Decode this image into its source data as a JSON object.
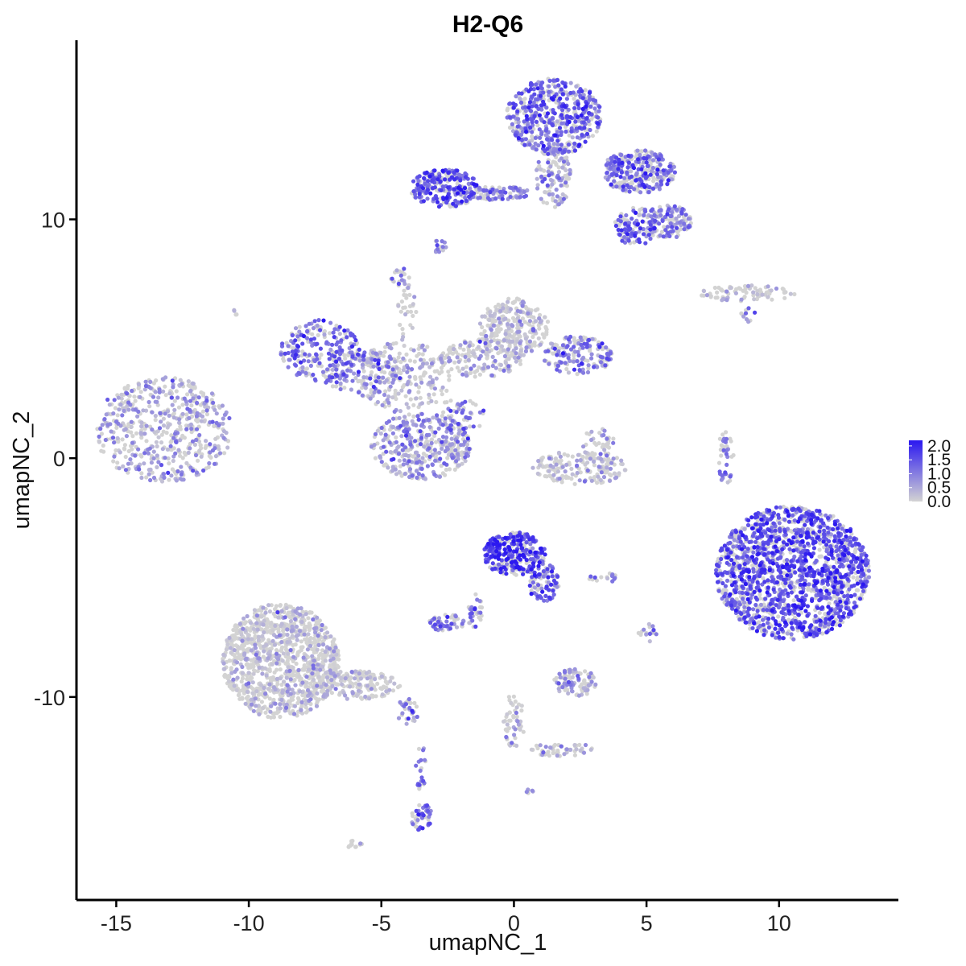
{
  "chart_data": {
    "type": "scatter",
    "title": "H2-Q6",
    "xlabel": "umapNC_1",
    "ylabel": "umapNC_2",
    "xlim": [
      -16.5,
      14.5
    ],
    "ylim": [
      -18.5,
      17.5
    ],
    "x_ticks": [
      -15,
      -10,
      -5,
      0,
      5,
      10
    ],
    "y_ticks": [
      -10,
      0,
      10
    ],
    "grid": false,
    "legend": {
      "placement": "right",
      "title": "",
      "ticks": [
        "0.0",
        "0.5",
        "1.0",
        "1.5",
        "2.0"
      ],
      "range": [
        0,
        2.2
      ]
    },
    "colors": {
      "low": "#d3d3d3",
      "high": "#2b18f0"
    },
    "clusters": [
      {
        "cx": -13.2,
        "cy": 1.2,
        "rx": 2.6,
        "ry": 2.2,
        "n": 520,
        "expr": 0.45
      },
      {
        "cx": -11.8,
        "cy": 2.2,
        "rx": 0.5,
        "ry": 0.5,
        "n": 25,
        "expr": 0.5
      },
      {
        "cx": -7.3,
        "cy": 4.5,
        "rx": 1.5,
        "ry": 1.3,
        "n": 220,
        "expr": 1.2
      },
      {
        "cx": -5.7,
        "cy": 3.6,
        "rx": 1.6,
        "ry": 0.9,
        "n": 140,
        "expr": 0.9
      },
      {
        "cx": -4.2,
        "cy": 3.4,
        "rx": 1.8,
        "ry": 1.5,
        "n": 200,
        "expr": 0.3
      },
      {
        "cx": -3.5,
        "cy": 0.5,
        "rx": 1.9,
        "ry": 1.4,
        "n": 380,
        "expr": 0.7
      },
      {
        "cx": -4.3,
        "cy": 7.6,
        "rx": 0.35,
        "ry": 0.4,
        "n": 20,
        "expr": 1.1
      },
      {
        "cx": -4.0,
        "cy": 6.0,
        "rx": 0.4,
        "ry": 1.3,
        "n": 30,
        "expr": 0.15
      },
      {
        "cx": -2.0,
        "cy": 1.8,
        "rx": 0.9,
        "ry": 0.8,
        "n": 50,
        "expr": 1.2
      },
      {
        "cx": 0.0,
        "cy": 5.5,
        "rx": 1.3,
        "ry": 1.2,
        "n": 260,
        "expr": 0.15
      },
      {
        "cx": -1.2,
        "cy": 4.2,
        "rx": 1.6,
        "ry": 0.8,
        "n": 160,
        "expr": 0.25
      },
      {
        "cx": 2.4,
        "cy": 4.3,
        "rx": 1.3,
        "ry": 0.8,
        "n": 160,
        "expr": 1.05
      },
      {
        "cx": 2.5,
        "cy": -0.4,
        "rx": 1.8,
        "ry": 0.7,
        "n": 170,
        "expr": 0.15
      },
      {
        "cx": 3.2,
        "cy": 0.6,
        "rx": 0.6,
        "ry": 0.8,
        "n": 40,
        "expr": 0.5
      },
      {
        "cx": -2.6,
        "cy": 11.3,
        "rx": 1.3,
        "ry": 0.8,
        "n": 260,
        "expr": 1.45
      },
      {
        "cx": -0.6,
        "cy": 11.1,
        "rx": 1.2,
        "ry": 0.3,
        "n": 90,
        "expr": 0.95
      },
      {
        "cx": 1.5,
        "cy": 14.3,
        "rx": 1.8,
        "ry": 1.6,
        "n": 520,
        "expr": 1.2
      },
      {
        "cx": 1.5,
        "cy": 11.8,
        "rx": 0.7,
        "ry": 1.3,
        "n": 120,
        "expr": 0.6
      },
      {
        "cx": 4.7,
        "cy": 12.0,
        "rx": 1.4,
        "ry": 0.9,
        "n": 300,
        "expr": 1.1
      },
      {
        "cx": 4.6,
        "cy": 9.7,
        "rx": 0.8,
        "ry": 0.8,
        "n": 120,
        "expr": 1.3
      },
      {
        "cx": 5.8,
        "cy": 9.9,
        "rx": 0.9,
        "ry": 0.7,
        "n": 120,
        "expr": 0.9
      },
      {
        "cx": -2.8,
        "cy": 8.9,
        "rx": 0.25,
        "ry": 0.35,
        "n": 14,
        "expr": 0.9
      },
      {
        "cx": 8.8,
        "cy": 6.9,
        "rx": 1.8,
        "ry": 0.35,
        "n": 80,
        "expr": 0.2
      },
      {
        "cx": 8.8,
        "cy": 6.0,
        "rx": 0.3,
        "ry": 0.4,
        "n": 10,
        "expr": 1.1
      },
      {
        "cx": 8.0,
        "cy": 0.0,
        "rx": 0.3,
        "ry": 1.3,
        "n": 40,
        "expr": 1.1
      },
      {
        "cx": 10.5,
        "cy": -4.8,
        "rx": 2.9,
        "ry": 2.8,
        "n": 1700,
        "expr": 1.45
      },
      {
        "cx": 0.0,
        "cy": -4.0,
        "rx": 1.2,
        "ry": 0.9,
        "n": 300,
        "expr": 1.7
      },
      {
        "cx": 1.1,
        "cy": -5.2,
        "rx": 0.6,
        "ry": 0.8,
        "n": 90,
        "expr": 1.4
      },
      {
        "cx": -1.5,
        "cy": -6.4,
        "rx": 0.3,
        "ry": 0.8,
        "n": 30,
        "expr": 1.2
      },
      {
        "cx": -2.5,
        "cy": -6.9,
        "rx": 0.7,
        "ry": 0.35,
        "n": 50,
        "expr": 1.0
      },
      {
        "cx": -8.8,
        "cy": -8.5,
        "rx": 2.2,
        "ry": 2.4,
        "n": 1100,
        "expr": 0.04
      },
      {
        "cx": -6.0,
        "cy": -9.5,
        "rx": 1.7,
        "ry": 0.6,
        "n": 180,
        "expr": 0.05
      },
      {
        "cx": -4.0,
        "cy": -10.6,
        "rx": 0.4,
        "ry": 0.6,
        "n": 30,
        "expr": 0.8
      },
      {
        "cx": -3.5,
        "cy": -13.0,
        "rx": 0.2,
        "ry": 1.0,
        "n": 20,
        "expr": 1.2
      },
      {
        "cx": -3.5,
        "cy": -15.0,
        "rx": 0.4,
        "ry": 0.6,
        "n": 50,
        "expr": 1.2
      },
      {
        "cx": 2.3,
        "cy": -9.4,
        "rx": 0.8,
        "ry": 0.6,
        "n": 90,
        "expr": 0.6
      },
      {
        "cx": 3.4,
        "cy": -5.0,
        "rx": 0.6,
        "ry": 0.2,
        "n": 15,
        "expr": 0.6
      },
      {
        "cx": 5.0,
        "cy": -7.3,
        "rx": 0.4,
        "ry": 0.4,
        "n": 16,
        "expr": 0.2
      },
      {
        "cx": 0.0,
        "cy": -11.0,
        "rx": 0.4,
        "ry": 1.2,
        "n": 50,
        "expr": 0.2
      },
      {
        "cx": 1.8,
        "cy": -12.2,
        "rx": 1.2,
        "ry": 0.3,
        "n": 50,
        "expr": 0.15
      },
      {
        "cx": -6.0,
        "cy": -16.2,
        "rx": 0.3,
        "ry": 0.2,
        "n": 14,
        "expr": 0.0
      },
      {
        "cx": 0.6,
        "cy": -13.9,
        "rx": 0.15,
        "ry": 0.15,
        "n": 6,
        "expr": 0.5
      },
      {
        "cx": -10.5,
        "cy": 6.1,
        "rx": 0.12,
        "ry": 0.12,
        "n": 4,
        "expr": 0.0
      }
    ]
  }
}
